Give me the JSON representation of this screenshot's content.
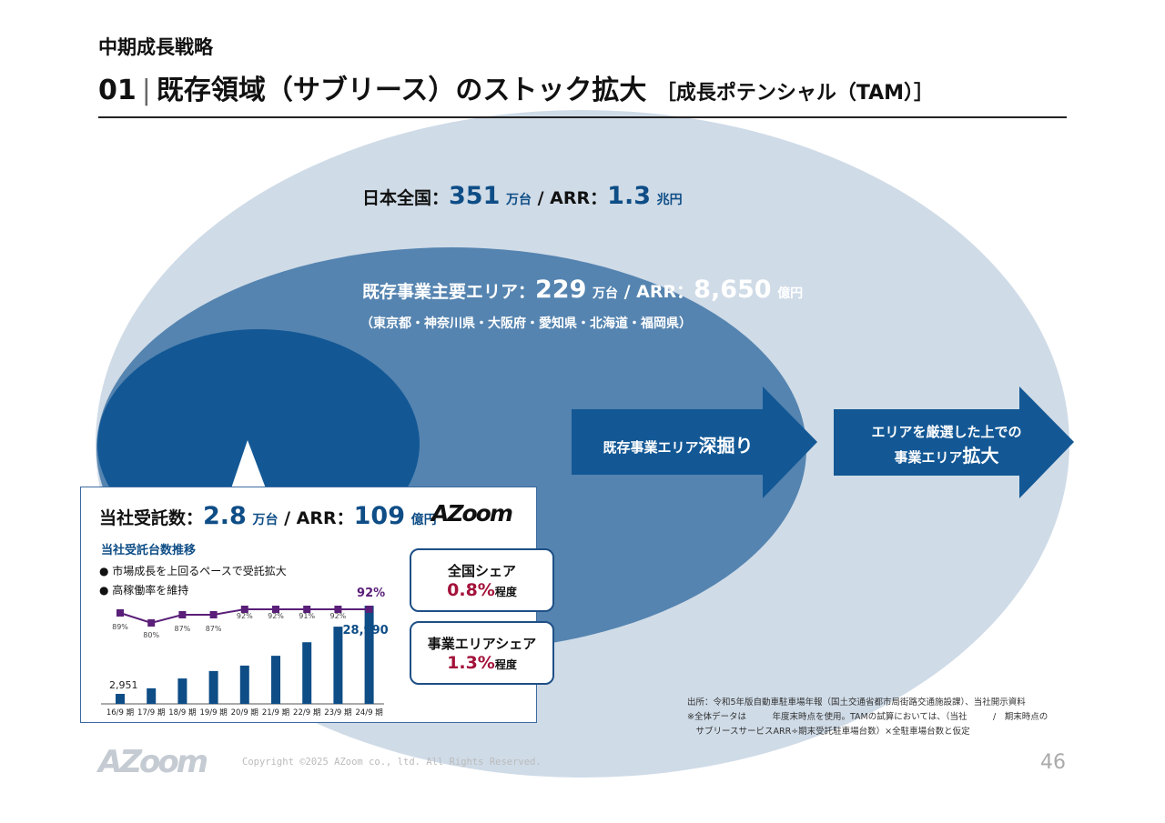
{
  "header": {
    "section": "中期成長戦略",
    "title_number": "01",
    "title": "既存領域（サブリース）のストック拡大",
    "title_sub": "［成長ポテンシャル（TAM）］"
  },
  "colors": {
    "outer": "#cfdbe7",
    "middle": "#5584b0",
    "inner": "#135895",
    "accent": "#0e4d86",
    "share": "#a3123a",
    "line": "#5a1f78"
  },
  "tam": {
    "label": "日本全国：",
    "units": "351",
    "units_suffix": "万台",
    "sep": " / ARR：",
    "arr": "1.3",
    "arr_suffix": "兆円"
  },
  "sam": {
    "label": "既存事業主要エリア：",
    "units": "229",
    "units_suffix": "万台",
    "sep": " / ARR：",
    "arr": "8,650",
    "arr_suffix": "億円",
    "areas": "（東京都・神奈川県・大阪府・愛知県・北海道・福岡県）"
  },
  "arrows": [
    {
      "text": "既存事業エリア",
      "emph": "深掘り"
    },
    {
      "line1": "エリアを厳選した上での",
      "text": "事業エリア",
      "emph": "拡大"
    }
  ],
  "som": {
    "label": "当社受託数：",
    "units": "2.8",
    "units_suffix": "万台",
    "sep": " / ARR：",
    "arr": "109",
    "arr_suffix": "億円",
    "logo": "AZoom",
    "chart_title": "当社受託台数推移",
    "bullets": [
      "市場成長を上回るペースで受託拡大",
      "高稼働率を維持"
    ]
  },
  "shares": [
    {
      "label": "全国シェア",
      "value": "0.8%",
      "suffix": "程度"
    },
    {
      "label": "事業エリアシェア",
      "value": "1.3%",
      "suffix": "程度"
    }
  ],
  "chart_data": {
    "type": "bar",
    "categories": [
      "16/9 期",
      "17/9 期",
      "18/9 期",
      "19/9 期",
      "20/9 期",
      "21/9 期",
      "22/9 期",
      "23/9 期",
      "24/9 期"
    ],
    "series": [
      {
        "type": "bar",
        "values": [
          2951,
          4600,
          7500,
          9700,
          11300,
          14200,
          18200,
          22800,
          28990
        ],
        "labels": [
          "2,951",
          "",
          "",
          "",
          "",
          "",
          "",
          "",
          "28,990"
        ]
      },
      {
        "type": "line",
        "values": [
          89,
          80,
          87,
          87,
          92,
          92,
          91,
          92,
          92
        ],
        "labels": [
          "89%",
          "80%",
          "87%",
          "87%",
          "92%",
          "92%",
          "91%",
          "92%",
          "92%"
        ]
      }
    ]
  },
  "notes": [
    "出所：令和5年版自動車駐車場年報（国土交通省都市局街路交通施設課）、当社開示資料",
    "※全体データは　　　年度末時点を使用。TAMの試算においては、（当社　　　/　期末時点の",
    "　サブリースサービスARR÷期末受託駐車場台数）×全駐車場台数と仮定"
  ],
  "footer": {
    "logo": "AZoom",
    "copyright": "Copyright ©2025 AZoom co., ltd. All Rights Reserved.",
    "page": "46"
  }
}
